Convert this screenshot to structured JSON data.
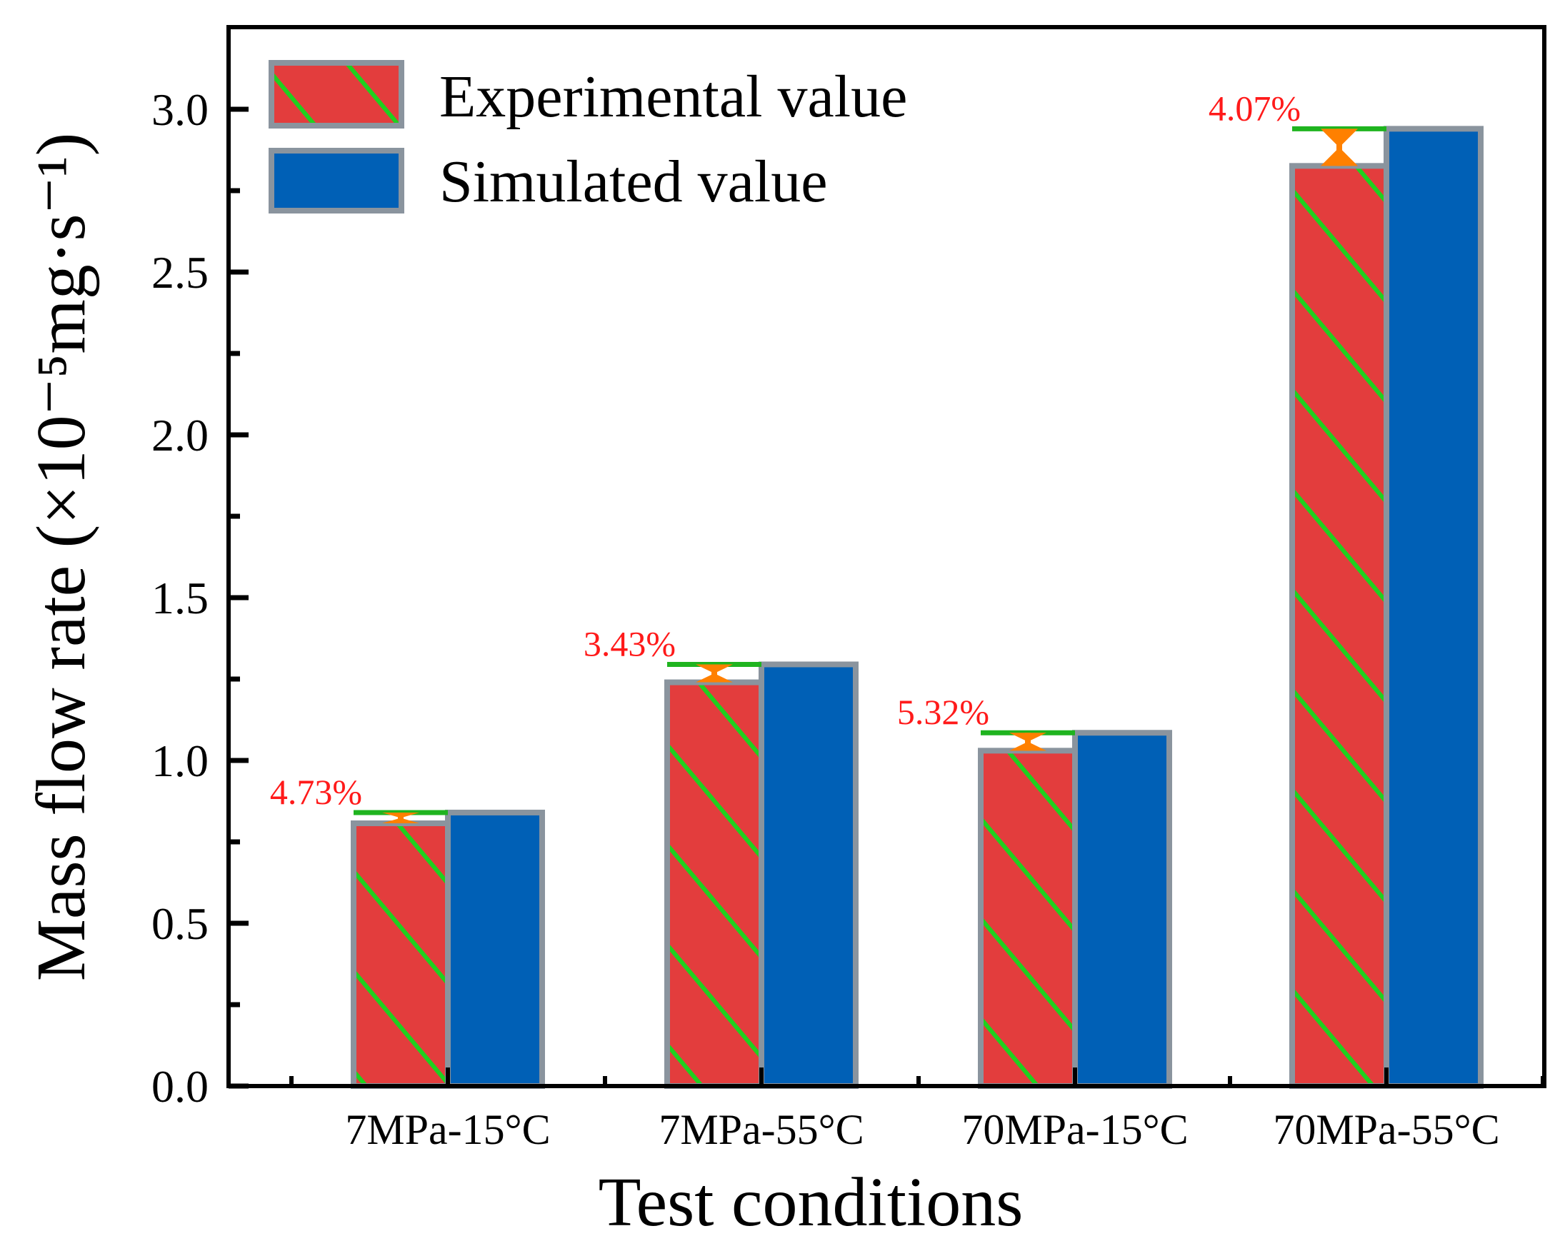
{
  "chart_data": {
    "type": "bar",
    "title": "",
    "xlabel": "Test conditions",
    "ylabel": "Mass flow rate (×10⁻⁵mg·s⁻¹)",
    "ylim": [
      0,
      3.25
    ],
    "yticks": [
      "0.0",
      "0.5",
      "1.0",
      "1.5",
      "2.0",
      "2.5",
      "3.0"
    ],
    "categories": [
      "7MPa-15°C",
      "7MPa-55°C",
      "70MPa-15°C",
      "70MPa-55°C"
    ],
    "series": [
      {
        "name": "Experimental value",
        "values": [
          0.807,
          1.24,
          1.03,
          2.826
        ],
        "color": "#e33d3d",
        "hatch_color": "#1fd01f"
      },
      {
        "name": "Simulated value",
        "values": [
          0.84,
          1.295,
          1.085,
          2.94
        ],
        "color": "#0060b6"
      }
    ],
    "error_labels": [
      "4.73%",
      "3.43%",
      "5.32%",
      "4.07%"
    ],
    "legend_position": "top-left",
    "grid": false,
    "colors": {
      "edge": "#8a949e",
      "error_bar": "#ff8000",
      "ref_line": "#1fb41f",
      "label": "#ff1a1a"
    }
  }
}
